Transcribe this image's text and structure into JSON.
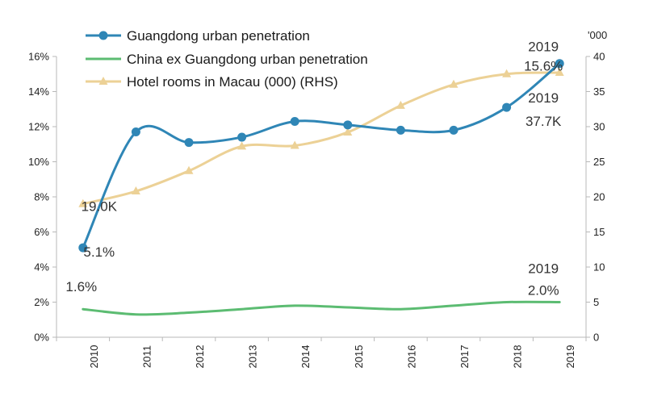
{
  "chart_data": {
    "type": "line",
    "categories": [
      "2010",
      "2011",
      "2012",
      "2013",
      "2014",
      "2015",
      "2016",
      "2017",
      "2018",
      "2019"
    ],
    "y_left": {
      "ticks": [
        "0%",
        "2%",
        "4%",
        "6%",
        "8%",
        "10%",
        "12%",
        "14%",
        "16%"
      ],
      "ylim": [
        0,
        16
      ]
    },
    "y_right": {
      "unit_label": "'000",
      "ticks": [
        "0",
        "5",
        "10",
        "15",
        "20",
        "25",
        "30",
        "35",
        "40"
      ],
      "ylim": [
        0,
        40
      ]
    },
    "legend_position": "top-left",
    "grid": false,
    "series": [
      {
        "name": "Guangdong urban penetration",
        "axis": "left",
        "color": "#2f86b6",
        "marker": "circle",
        "values": [
          5.1,
          11.7,
          11.1,
          11.4,
          12.3,
          12.1,
          11.8,
          11.8,
          13.1,
          15.6
        ]
      },
      {
        "name": "China ex Guangdong urban penetration",
        "axis": "left",
        "color": "#5cbc72",
        "marker": "none",
        "values": [
          1.6,
          1.3,
          1.4,
          1.6,
          1.8,
          1.7,
          1.6,
          1.8,
          2.0,
          2.0
        ]
      },
      {
        "name": "Hotel rooms in Macau (000) (RHS)",
        "axis": "right",
        "color": "#ecd196",
        "marker": "triangle",
        "values": [
          19.0,
          20.8,
          23.7,
          27.2,
          27.3,
          29.2,
          33.0,
          36.0,
          37.5,
          37.7
        ]
      }
    ],
    "annotations": [
      {
        "text": "19.0K",
        "series": 2,
        "index": 0
      },
      {
        "text": "5.1%",
        "series": 0,
        "index": 0
      },
      {
        "text": "1.6%",
        "series": 1,
        "index": 0
      },
      {
        "text": "2019",
        "series": 0,
        "index": 9
      },
      {
        "text": "15.6%",
        "series": 0,
        "index": 9
      },
      {
        "text": "2019",
        "series": 2,
        "index": 9
      },
      {
        "text": "37.7K",
        "series": 2,
        "index": 9
      },
      {
        "text": "2019",
        "series": 1,
        "index": 9
      },
      {
        "text": "2.0%",
        "series": 1,
        "index": 9
      }
    ]
  }
}
